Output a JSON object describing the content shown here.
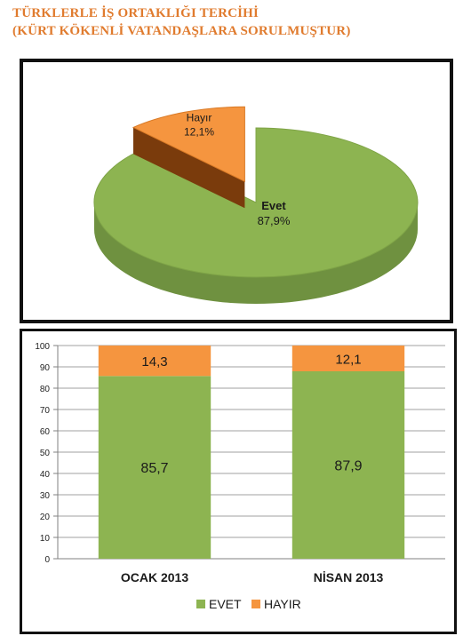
{
  "header": {
    "title_line1": "TÜRKLERLE İŞ ORTAKLIĞI TERCİHİ",
    "title_line2": "(KÜRT KÖKENLİ VATANDAŞLARA SORULMUŞTUR)"
  },
  "colors": {
    "evet": "#8db451",
    "evet_side": "#6f9140",
    "hayir": "#f5953f",
    "hayir_side": "#7a3b0c",
    "title": "#e07b2e"
  },
  "chart_data": [
    {
      "type": "pie",
      "slices": [
        {
          "label": "Evet",
          "value": 87.9,
          "value_label": "87,9%"
        },
        {
          "label": "Hayır",
          "value": 12.1,
          "value_label": "12,1%"
        }
      ]
    },
    {
      "type": "bar",
      "stacked": true,
      "categories": [
        "OCAK 2013",
        "NİSAN 2013"
      ],
      "series": [
        {
          "name": "EVET",
          "values": [
            85.7,
            87.9
          ],
          "value_labels": [
            "85,7",
            "87,9"
          ]
        },
        {
          "name": "HAYIR",
          "values": [
            14.3,
            12.1
          ],
          "value_labels": [
            "14,3",
            "12,1"
          ]
        }
      ],
      "ylim": [
        0,
        100
      ],
      "yticks": [
        0,
        10,
        20,
        30,
        40,
        50,
        60,
        70,
        80,
        90,
        100
      ],
      "grid": true,
      "legend_position": "bottom"
    }
  ]
}
